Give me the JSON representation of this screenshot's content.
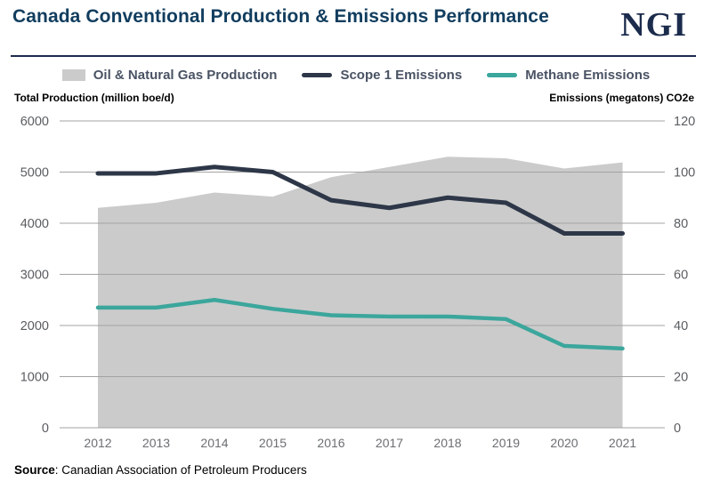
{
  "header": {
    "title": "Canada Conventional Production & Emissions Performance",
    "logo": "NGI"
  },
  "legend": [
    {
      "label": "Oil & Natural Gas Production",
      "marker": "area-swatch",
      "color": "#cbcbcb"
    },
    {
      "label": "Scope 1 Emissions",
      "marker": "line-dash",
      "color": "#2d3748"
    },
    {
      "label": "Methane Emissions",
      "marker": "line-dash",
      "color": "#3ba69c"
    }
  ],
  "captions": {
    "left": "Total Production (million boe/d)",
    "right": "Emissions (megatons) CO2e"
  },
  "source": {
    "prefix": "Source",
    "text": ": Canadian Association of Petroleum Producers"
  },
  "chart_data": {
    "type": "area",
    "title": "Canada Conventional Production & Emissions Performance",
    "categories": [
      "2012",
      "2013",
      "2014",
      "2015",
      "2016",
      "2017",
      "2018",
      "2019",
      "2020",
      "2021"
    ],
    "series": [
      {
        "name": "Oil & Natural Gas Production",
        "type": "area",
        "axis": "left",
        "color": "#cbcbcb",
        "values": [
          4300,
          4400,
          4600,
          4520,
          4900,
          5100,
          5300,
          5270,
          5070,
          5190
        ]
      },
      {
        "name": "Scope 1 Emissions",
        "type": "line",
        "axis": "right",
        "color": "#2d3748",
        "values": [
          99.5,
          99.5,
          102,
          100,
          89,
          86,
          90,
          88,
          76,
          76
        ]
      },
      {
        "name": "Methane Emissions",
        "type": "line",
        "axis": "right",
        "color": "#3ba69c",
        "values": [
          47,
          47,
          50,
          46.5,
          44,
          43.5,
          43.5,
          42.5,
          32,
          31
        ]
      }
    ],
    "left_axis": {
      "label": "Total Production (million boe/d)",
      "min": 0,
      "max": 6000,
      "ticks": [
        0,
        1000,
        2000,
        3000,
        4000,
        5000,
        6000
      ]
    },
    "right_axis": {
      "label": "Emissions (megatons) CO2e",
      "min": 0,
      "max": 120,
      "ticks": [
        0,
        20,
        40,
        60,
        80,
        100,
        120
      ]
    },
    "grid": true,
    "legend_position": "top",
    "gridline_color": "#a3a3a3",
    "tick_color": "#5a5d61",
    "xtick_color": "#6b6e71"
  }
}
